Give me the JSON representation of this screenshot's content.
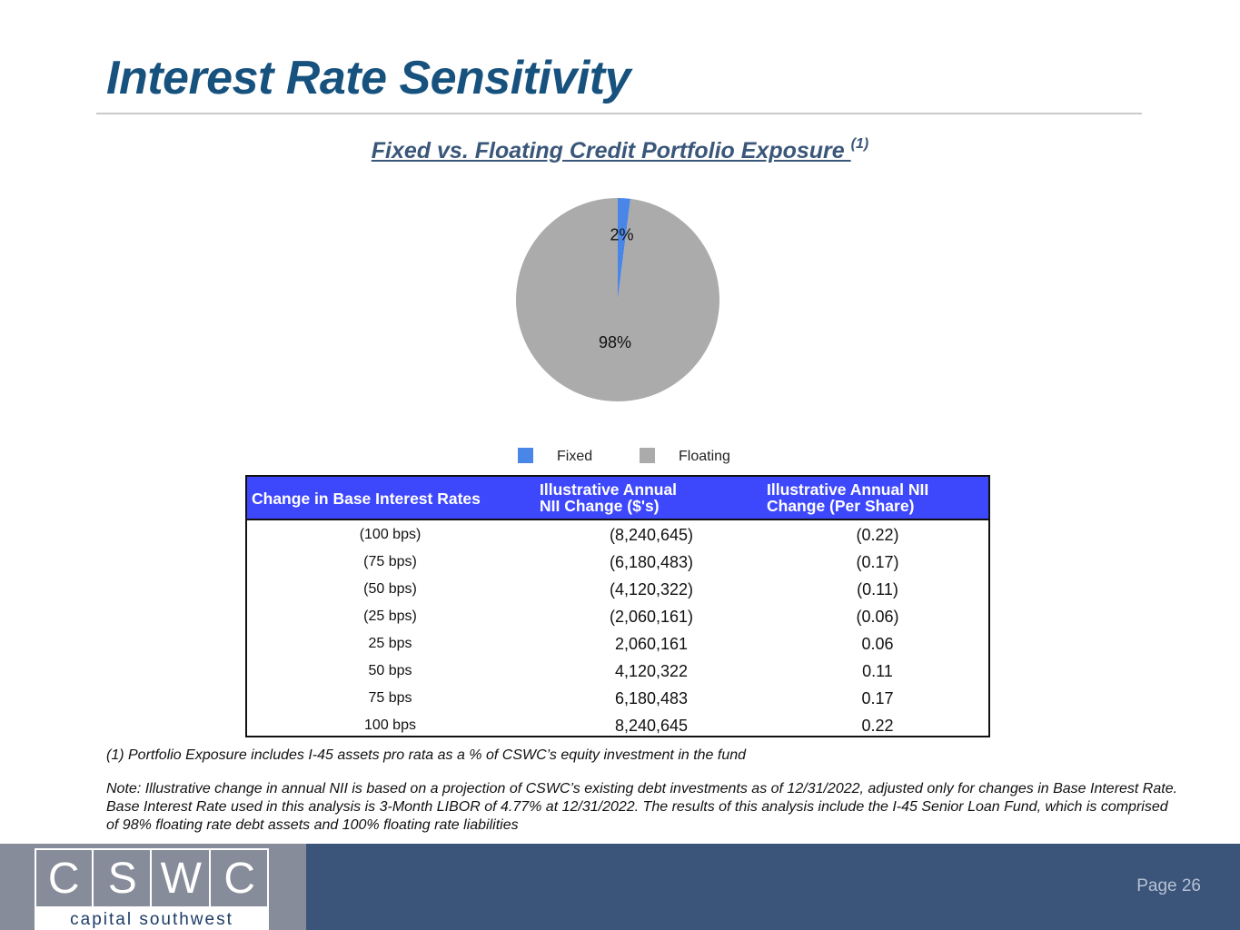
{
  "page": {
    "title": "Interest Rate Sensitivity",
    "subtitle": "Fixed vs. Floating Credit Portfolio Exposure ",
    "subtitle_note": "(1)",
    "page_number": "Page 26"
  },
  "chart_data": {
    "type": "pie",
    "categories": [
      "Fixed",
      "Floating"
    ],
    "values": [
      2,
      98
    ],
    "data_labels": [
      "2%",
      "98%"
    ],
    "colors": [
      "#4a86e8",
      "#ababab"
    ],
    "legend": "bottom"
  },
  "legend": {
    "fixed": "Fixed",
    "floating": "Floating"
  },
  "table": {
    "headers": {
      "col1": "Change in Base Interest Rates",
      "col2_line1": "Illustrative Annual",
      "col2_line2": "NII Change ($'s)",
      "col3_line1": "Illustrative Annual NII",
      "col3_line2": "Change (Per Share)"
    },
    "rows": [
      {
        "change": "(100 bps)",
        "nii": "(8,240,645)",
        "per_share": "(0.22)"
      },
      {
        "change": "(75 bps)",
        "nii": "(6,180,483)",
        "per_share": "(0.17)"
      },
      {
        "change": "(50 bps)",
        "nii": "(4,120,322)",
        "per_share": "(0.11)"
      },
      {
        "change": "(25 bps)",
        "nii": "(2,060,161)",
        "per_share": "(0.06)"
      },
      {
        "change": "25 bps",
        "nii": "2,060,161",
        "per_share": "0.06"
      },
      {
        "change": "50 bps",
        "nii": "4,120,322",
        "per_share": "0.11"
      },
      {
        "change": "75 bps",
        "nii": "6,180,483",
        "per_share": "0.17"
      },
      {
        "change": "100 bps",
        "nii": "8,240,645",
        "per_share": "0.22"
      }
    ]
  },
  "footnote": "(1) Portfolio Exposure includes I-45 assets pro rata as a % of CSWC’s equity investment in the fund",
  "note": "Note:  Illustrative change in annual NII is based on a projection of CSWC’s existing debt investments as of 12/31/2022, adjusted only for changes in Base Interest Rate. Base Interest Rate used in this analysis is 3-Month LIBOR of 4.77% at 12/31/2022.  The results of this analysis include the I-45 Senior Loan Fund, which is comprised of 98% floating rate debt assets and 100% floating rate liabilities",
  "logo": {
    "letters": [
      "C",
      "S",
      "W",
      "C"
    ],
    "text": "capital southwest"
  },
  "colors": {
    "title": "#17527f",
    "table_header": "#3d47fb",
    "footer": "#3b5479"
  }
}
